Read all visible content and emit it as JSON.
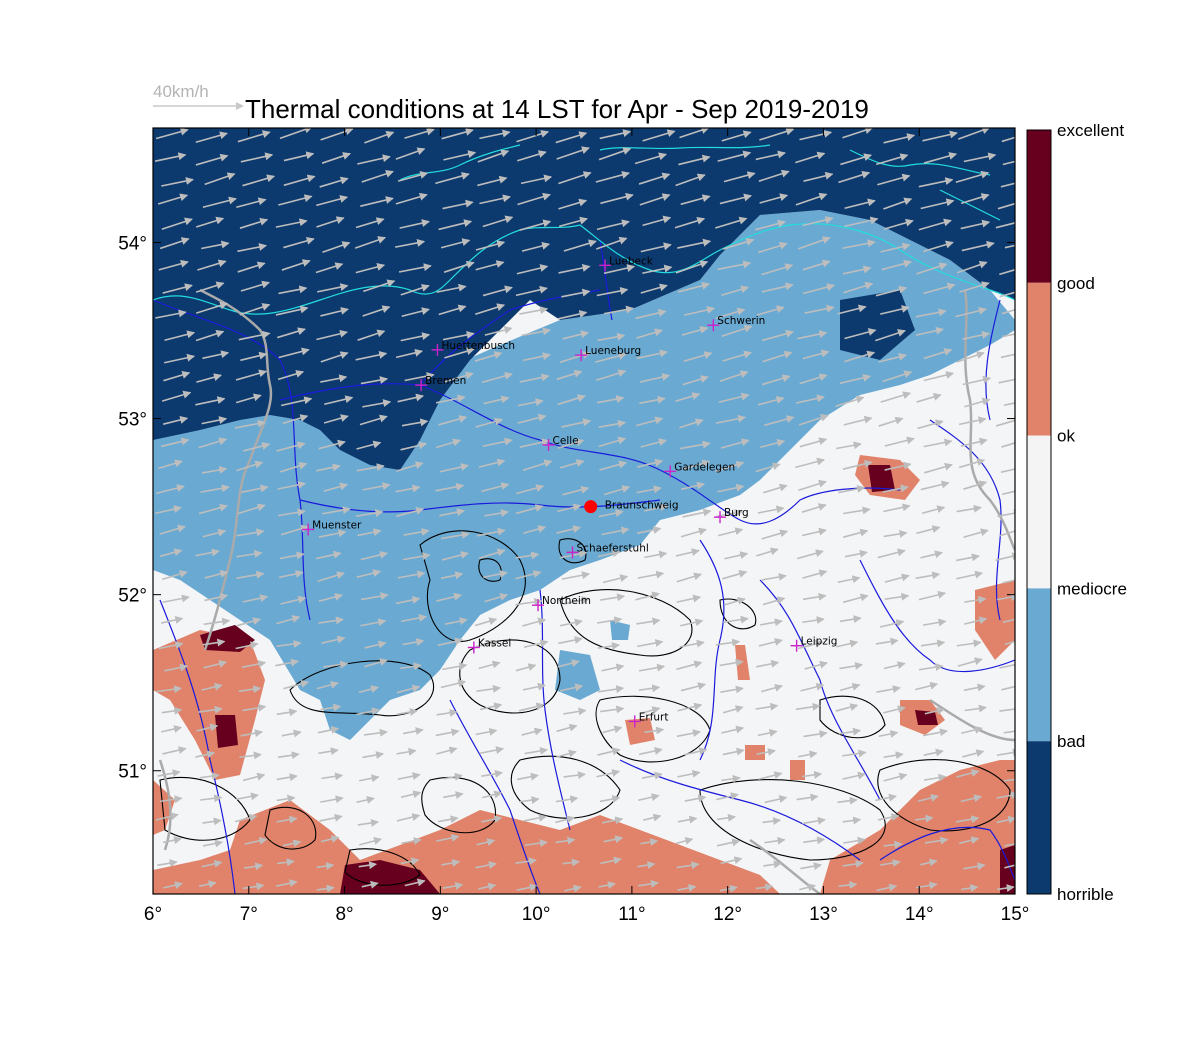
{
  "title": "Thermal conditions at 14 LST for Apr - Sep  2019-2019",
  "wind_reference": "40km/h",
  "x_ticks": [
    "6°",
    "7°",
    "8°",
    "9°",
    "10°",
    "11°",
    "12°",
    "13°",
    "14°",
    "15°"
  ],
  "y_ticks": [
    "51°",
    "52°",
    "53°",
    "54°"
  ],
  "colorbar": {
    "labels": [
      "excellent",
      "good",
      "ok",
      "mediocre",
      "bad",
      "horrible"
    ],
    "colors": [
      "#67001f",
      "#e0836a",
      "#f4f4f4",
      "#6aaad2",
      "#0d3a6e"
    ]
  },
  "colors": {
    "horrible": "#0d3a6e",
    "bad": "#6aaad2",
    "mediocre": "#f4f5f7",
    "good": "#e0836a",
    "excellent": "#67001f",
    "rivers": "#1a1adc",
    "coast": "#22dddd",
    "city_marker": "#cc22cc",
    "wind_arrows": "#bdbdbd",
    "highlight": "#ff0000"
  },
  "cities": [
    {
      "name": "Luebeck",
      "lon": 10.72,
      "lat": 53.87
    },
    {
      "name": "Schwerin",
      "lon": 11.85,
      "lat": 53.53
    },
    {
      "name": "Huettenbusch",
      "lon": 8.97,
      "lat": 53.39
    },
    {
      "name": "Lueneburg",
      "lon": 10.47,
      "lat": 53.36
    },
    {
      "name": "Bremen",
      "lon": 8.8,
      "lat": 53.19
    },
    {
      "name": "Celle",
      "lon": 10.13,
      "lat": 52.85
    },
    {
      "name": "Gardelegen",
      "lon": 11.4,
      "lat": 52.7
    },
    {
      "name": "Burg",
      "lon": 11.92,
      "lat": 52.44
    },
    {
      "name": "Muenster",
      "lon": 7.62,
      "lat": 52.37
    },
    {
      "name": "Schaeferstuhl",
      "lon": 10.38,
      "lat": 52.24
    },
    {
      "name": "Northeim",
      "lon": 10.02,
      "lat": 51.94
    },
    {
      "name": "Leipzig",
      "lon": 12.72,
      "lat": 51.71
    },
    {
      "name": "Kassel",
      "lon": 9.35,
      "lat": 51.7
    },
    {
      "name": "Erfurt",
      "lon": 11.03,
      "lat": 51.28
    }
  ],
  "highlight_site": {
    "name": "Braunschweig",
    "lon": 10.57,
    "lat": 52.5
  },
  "map_extent": {
    "lon": [
      6,
      15
    ],
    "lat": [
      50.3,
      54.65
    ]
  }
}
